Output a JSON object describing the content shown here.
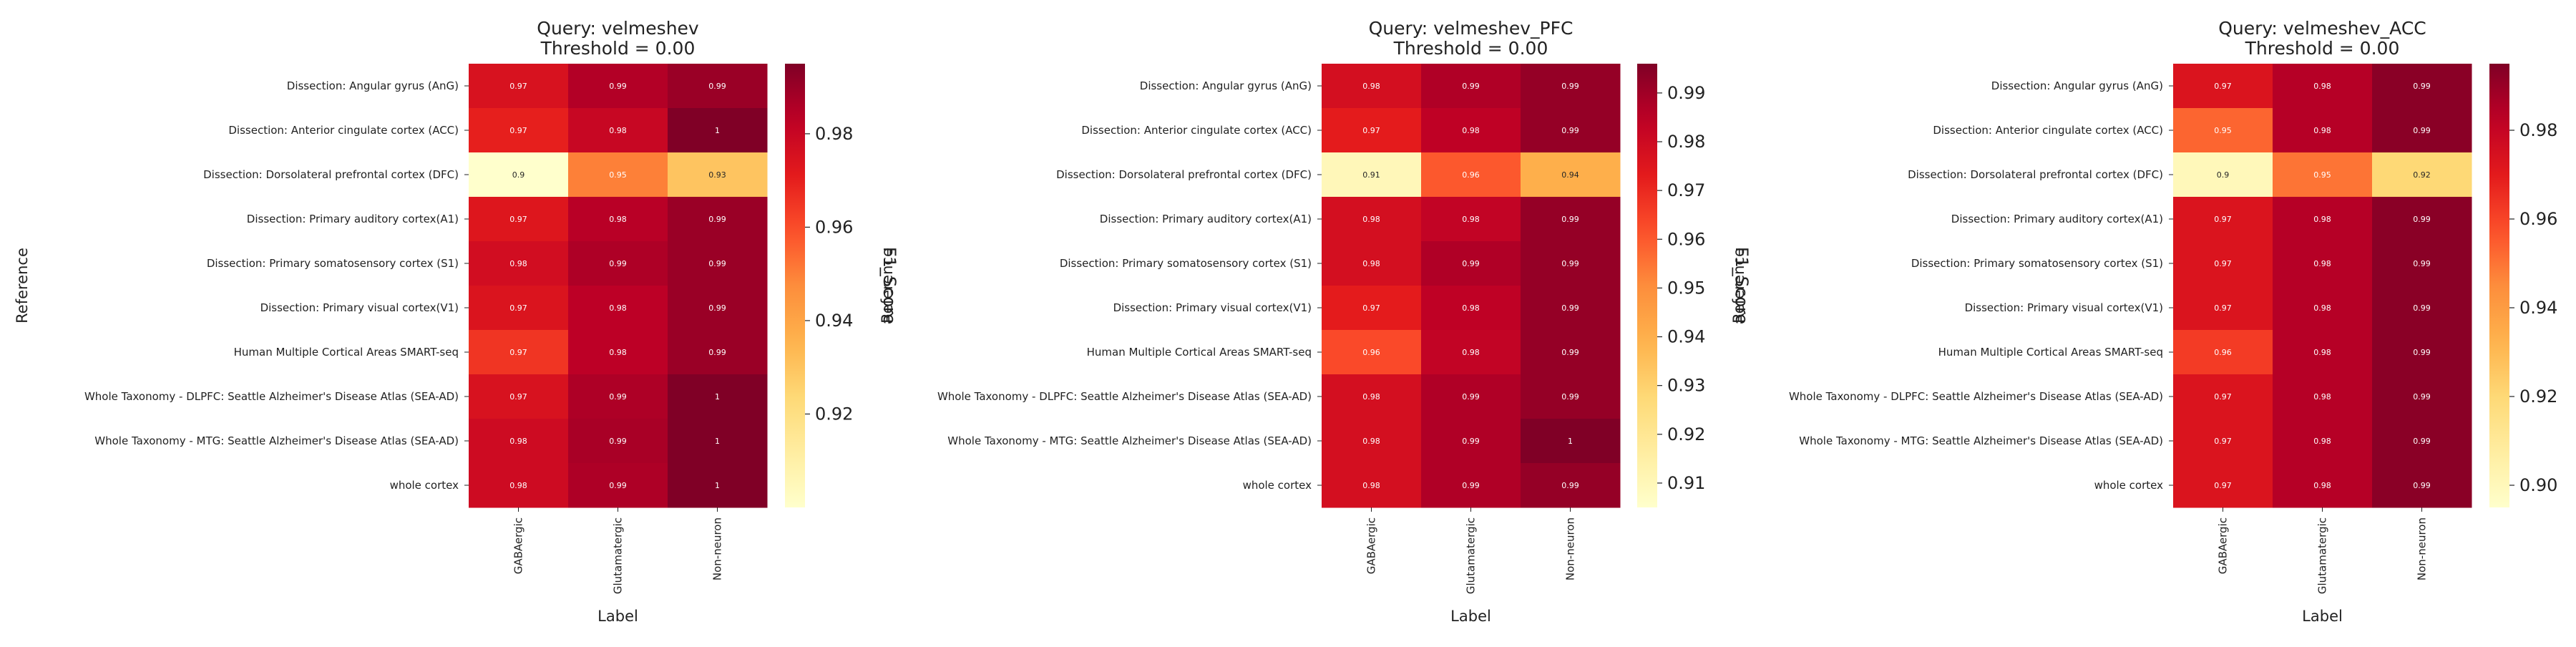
{
  "page": {
    "colormap": "YlOrRd",
    "colorbar_label": "F1_Score",
    "xlabel": "Label",
    "ylabel": "Reference"
  },
  "chart_data": [
    {
      "type": "heatmap",
      "title": "Query: velmeshev",
      "subtitle": "Threshold = 0.00",
      "xlabel": "Label",
      "ylabel": "Reference",
      "colorbar_label": "F1_Score",
      "x_categories": [
        "GABAergic",
        "Glutamatergic",
        "Non-neuron"
      ],
      "y_categories": [
        "Dissection: Angular gyrus (AnG)",
        "Dissection: Anterior cingulate cortex (ACC)",
        "Dissection: Dorsolateral prefrontal cortex (DFC)",
        "Dissection: Primary auditory cortex(A1)",
        "Dissection: Primary somatosensory cortex (S1)",
        "Dissection: Primary visual cortex(V1)",
        "Human Multiple Cortical Areas SMART-seq",
        "Whole Taxonomy - DLPFC: Seattle Alzheimer's Disease Atlas (SEA-AD)",
        "Whole Taxonomy - MTG: Seattle Alzheimer's Disease Atlas (SEA-AD)",
        "whole cortex"
      ],
      "values": [
        [
          0.975,
          0.985,
          0.99
        ],
        [
          0.97,
          0.98,
          1.0
        ],
        [
          0.9,
          0.95,
          0.93
        ],
        [
          0.973,
          0.984,
          0.99
        ],
        [
          0.977,
          0.986,
          0.99
        ],
        [
          0.974,
          0.983,
          0.99
        ],
        [
          0.965,
          0.983,
          0.99
        ],
        [
          0.975,
          0.986,
          1.0
        ],
        [
          0.978,
          0.987,
          1.0
        ],
        [
          0.978,
          0.986,
          1.0
        ]
      ],
      "cell_labels": [
        [
          "0.97",
          "0.99",
          "0.99"
        ],
        [
          "0.97",
          "0.98",
          "1"
        ],
        [
          "0.9",
          "0.95",
          "0.93"
        ],
        [
          "0.97",
          "0.98",
          "0.99"
        ],
        [
          "0.98",
          "0.99",
          "0.99"
        ],
        [
          "0.97",
          "0.98",
          "0.99"
        ],
        [
          "0.97",
          "0.98",
          "0.99"
        ],
        [
          "0.97",
          "0.99",
          "1"
        ],
        [
          "0.98",
          "0.99",
          "1"
        ],
        [
          "0.98",
          "0.99",
          "1"
        ]
      ],
      "vmin": 0.9,
      "vmax": 0.995,
      "colorbar_ticks": [
        "0.92",
        "0.94",
        "0.96",
        "0.98"
      ]
    },
    {
      "type": "heatmap",
      "title": "Query: velmeshev_PFC",
      "subtitle": "Threshold = 0.00",
      "xlabel": "Label",
      "ylabel": "Reference",
      "colorbar_label": "F1_Score",
      "x_categories": [
        "GABAergic",
        "Glutamatergic",
        "Non-neuron"
      ],
      "y_categories": [
        "Dissection: Angular gyrus (AnG)",
        "Dissection: Anterior cingulate cortex (ACC)",
        "Dissection: Dorsolateral prefrontal cortex (DFC)",
        "Dissection: Primary auditory cortex(A1)",
        "Dissection: Primary somatosensory cortex (S1)",
        "Dissection: Primary visual cortex(V1)",
        "Human Multiple Cortical Areas SMART-seq",
        "Whole Taxonomy - DLPFC: Seattle Alzheimer's Disease Atlas (SEA-AD)",
        "Whole Taxonomy - MTG: Seattle Alzheimer's Disease Atlas (SEA-AD)",
        "whole cortex"
      ],
      "values": [
        [
          0.978,
          0.987,
          0.992
        ],
        [
          0.973,
          0.984,
          0.992
        ],
        [
          0.91,
          0.96,
          0.94
        ],
        [
          0.978,
          0.983,
          0.992
        ],
        [
          0.978,
          0.987,
          0.992
        ],
        [
          0.973,
          0.984,
          0.992
        ],
        [
          0.963,
          0.983,
          0.992
        ],
        [
          0.978,
          0.987,
          0.992
        ],
        [
          0.978,
          0.987,
          0.996
        ],
        [
          0.978,
          0.987,
          0.992
        ]
      ],
      "cell_labels": [
        [
          "0.98",
          "0.99",
          "0.99"
        ],
        [
          "0.97",
          "0.98",
          "0.99"
        ],
        [
          "0.91",
          "0.96",
          "0.94"
        ],
        [
          "0.98",
          "0.98",
          "0.99"
        ],
        [
          "0.98",
          "0.99",
          "0.99"
        ],
        [
          "0.97",
          "0.98",
          "0.99"
        ],
        [
          "0.96",
          "0.98",
          "0.99"
        ],
        [
          "0.98",
          "0.99",
          "0.99"
        ],
        [
          "0.98",
          "0.99",
          "1"
        ],
        [
          "0.98",
          "0.99",
          "0.99"
        ]
      ],
      "vmin": 0.905,
      "vmax": 0.996,
      "colorbar_ticks": [
        "0.91",
        "0.92",
        "0.93",
        "0.94",
        "0.95",
        "0.96",
        "0.97",
        "0.98",
        "0.99"
      ]
    },
    {
      "type": "heatmap",
      "title": "Query: velmeshev_ACC",
      "subtitle": "Threshold = 0.00",
      "xlabel": "Label",
      "ylabel": "Reference",
      "colorbar_label": "F1_Score",
      "x_categories": [
        "GABAergic",
        "Glutamatergic",
        "Non-neuron"
      ],
      "y_categories": [
        "Dissection: Angular gyrus (AnG)",
        "Dissection: Anterior cingulate cortex (ACC)",
        "Dissection: Dorsolateral prefrontal cortex (DFC)",
        "Dissection: Primary auditory cortex(A1)",
        "Dissection: Primary somatosensory cortex (S1)",
        "Dissection: Primary visual cortex(V1)",
        "Human Multiple Cortical Areas SMART-seq",
        "Whole Taxonomy - DLPFC: Seattle Alzheimer's Disease Atlas (SEA-AD)",
        "Whole Taxonomy - MTG: Seattle Alzheimer's Disease Atlas (SEA-AD)",
        "whole cortex"
      ],
      "values": [
        [
          0.973,
          0.984,
          0.993
        ],
        [
          0.953,
          0.984,
          0.993
        ],
        [
          0.9,
          0.95,
          0.92
        ],
        [
          0.973,
          0.984,
          0.993
        ],
        [
          0.973,
          0.984,
          0.993
        ],
        [
          0.973,
          0.984,
          0.993
        ],
        [
          0.962,
          0.984,
          0.993
        ],
        [
          0.973,
          0.984,
          0.993
        ],
        [
          0.973,
          0.984,
          0.993
        ],
        [
          0.973,
          0.984,
          0.993
        ]
      ],
      "cell_labels": [
        [
          "0.97",
          "0.98",
          "0.99"
        ],
        [
          "0.95",
          "0.98",
          "0.99"
        ],
        [
          "0.9",
          "0.95",
          "0.92"
        ],
        [
          "0.97",
          "0.98",
          "0.99"
        ],
        [
          "0.97",
          "0.98",
          "0.99"
        ],
        [
          "0.97",
          "0.98",
          "0.99"
        ],
        [
          "0.96",
          "0.98",
          "0.99"
        ],
        [
          "0.97",
          "0.98",
          "0.99"
        ],
        [
          "0.97",
          "0.98",
          "0.99"
        ],
        [
          "0.97",
          "0.98",
          "0.99"
        ]
      ],
      "vmin": 0.895,
      "vmax": 0.995,
      "colorbar_ticks": [
        "0.90",
        "0.92",
        "0.94",
        "0.96",
        "0.98"
      ]
    }
  ]
}
